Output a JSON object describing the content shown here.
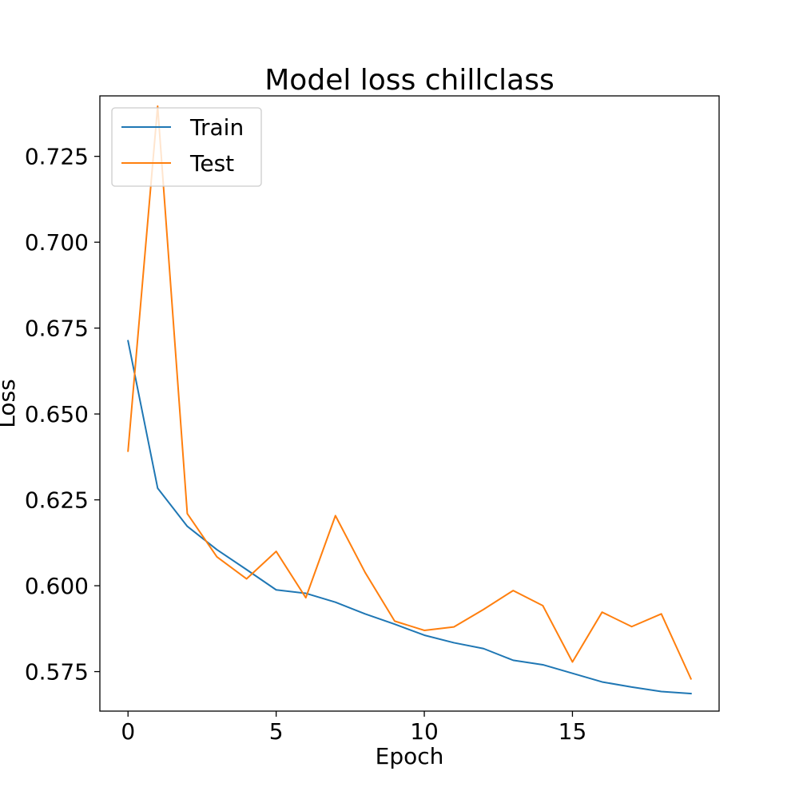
{
  "chart_data": {
    "type": "line",
    "title": "Model loss chillclass",
    "xlabel": "Epoch",
    "ylabel": "Loss",
    "x": [
      0,
      1,
      2,
      3,
      4,
      5,
      6,
      7,
      8,
      9,
      10,
      11,
      12,
      13,
      14,
      15,
      16,
      17,
      18,
      19
    ],
    "xlim": [
      -0.95,
      19.95
    ],
    "ylim": [
      0.5635,
      0.7426
    ],
    "xticks": [
      0,
      5,
      10,
      15
    ],
    "xtick_labels": [
      "0",
      "5",
      "10",
      "15"
    ],
    "yticks": [
      0.575,
      0.6,
      0.625,
      0.65,
      0.675,
      0.7,
      0.725
    ],
    "ytick_labels": [
      "0.575",
      "0.600",
      "0.625",
      "0.650",
      "0.675",
      "0.700",
      "0.725"
    ],
    "grid": false,
    "legend_position": "top-left",
    "series": [
      {
        "name": "Train",
        "color": "#1f77b4",
        "values": [
          0.6713,
          0.6284,
          0.6173,
          0.6105,
          0.6047,
          0.5988,
          0.5978,
          0.5952,
          0.5918,
          0.5888,
          0.5856,
          0.5834,
          0.5817,
          0.5783,
          0.577,
          0.5745,
          0.572,
          0.5705,
          0.5692,
          0.5686
        ]
      },
      {
        "name": "Test",
        "color": "#ff7f0e",
        "values": [
          0.6392,
          0.7396,
          0.621,
          0.6084,
          0.602,
          0.61,
          0.5965,
          0.6204,
          0.6039,
          0.5897,
          0.587,
          0.588,
          0.5931,
          0.5986,
          0.5942,
          0.5778,
          0.5923,
          0.5881,
          0.5918,
          0.5729
        ]
      }
    ]
  }
}
